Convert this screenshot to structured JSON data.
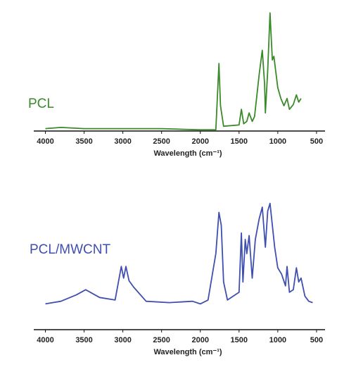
{
  "chart_data": [
    {
      "type": "line",
      "xlabel": "Wavelength (cm⁻¹)",
      "xlim": [
        4150,
        390
      ],
      "xticks": [
        4000,
        3500,
        3000,
        2500,
        2000,
        1500,
        1000,
        500
      ],
      "ylim": [
        0,
        100
      ],
      "series": [
        {
          "name": "PCL",
          "color": "#3a8a2a",
          "x": [
            4000,
            3800,
            3500,
            3000,
            2500,
            2000,
            1800,
            1760,
            1740,
            1700,
            1500,
            1470,
            1440,
            1400,
            1370,
            1330,
            1300,
            1240,
            1200,
            1170,
            1160,
            1130,
            1100,
            1070,
            1050,
            1000,
            960,
            920,
            880,
            850,
            800,
            760,
            730,
            700
          ],
          "values": [
            2,
            3,
            2,
            2,
            2,
            1,
            1,
            56,
            21,
            4,
            5,
            18,
            6,
            8,
            15,
            8,
            12,
            47,
            67,
            39,
            15,
            50,
            98,
            59,
            62,
            36,
            27,
            21,
            27,
            18,
            22,
            30,
            24,
            27
          ]
        }
      ]
    },
    {
      "type": "line",
      "xlabel": "Wavelength (cm⁻¹)",
      "xlim": [
        4150,
        390
      ],
      "xticks": [
        4000,
        3500,
        3000,
        2500,
        2000,
        1500,
        1000,
        500
      ],
      "ylim": [
        0,
        100
      ],
      "series": [
        {
          "name": "PCL/MWCNT",
          "color": "#3f4fb0",
          "x": [
            4000,
            3800,
            3600,
            3480,
            3300,
            3100,
            3020,
            2990,
            2960,
            2920,
            2860,
            2700,
            2400,
            2100,
            2000,
            1900,
            1800,
            1760,
            1730,
            1700,
            1650,
            1500,
            1470,
            1450,
            1420,
            1400,
            1370,
            1330,
            1290,
            1240,
            1200,
            1160,
            1130,
            1100,
            1070,
            1040,
            1000,
            950,
            900,
            880,
            850,
            800,
            760,
            730,
            700,
            650,
            600,
            550
          ],
          "values": [
            20,
            22,
            27,
            31,
            25,
            23,
            49,
            40,
            49,
            38,
            33,
            22,
            21,
            22,
            20,
            23,
            59,
            91,
            81,
            37,
            23,
            29,
            75,
            37,
            70,
            59,
            73,
            40,
            70,
            86,
            95,
            64,
            92,
            98,
            81,
            64,
            48,
            43,
            34,
            49,
            29,
            31,
            48,
            37,
            40,
            26,
            22,
            21
          ]
        }
      ]
    }
  ]
}
